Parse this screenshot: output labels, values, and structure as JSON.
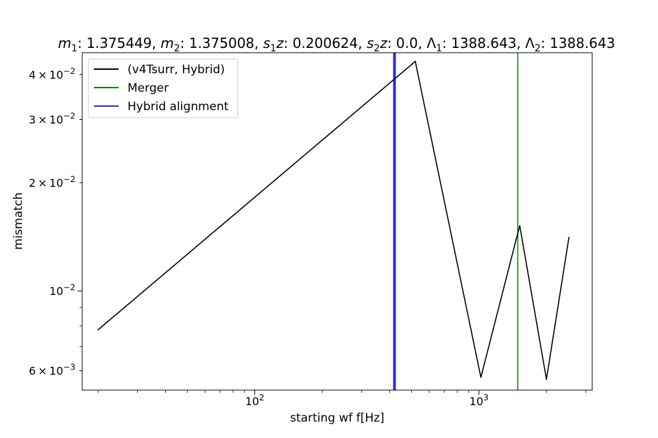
{
  "chart_data": {
    "type": "line",
    "title": {
      "m1_label": "m",
      "m1_sub": "1",
      "m1_value": ": 1.375449, ",
      "m2_label": "m",
      "m2_sub": "2",
      "m2_value": ": 1.375008, ",
      "s1_label": "s",
      "s1_sub": "1",
      "s1_suffix": "z",
      "s1_value": ": 0.200624, ",
      "s2_label": "s",
      "s2_sub": "2",
      "s2_suffix": "z",
      "s2_value": ": 0.0, ",
      "l1_label": "Λ",
      "l1_sub": "1",
      "l1_value": ": 1388.643, ",
      "l2_label": "Λ",
      "l2_sub": "2",
      "l2_value": ": 1388.643"
    },
    "xlabel": "starting wf f[Hz]",
    "ylabel": "mismatch",
    "xscale": "log",
    "yscale": "log",
    "xlim": [
      17,
      3200
    ],
    "ylim": [
      0.0053,
      0.046
    ],
    "x_ticks": [
      {
        "value": 100,
        "base": "10",
        "exp": "2"
      },
      {
        "value": 1000,
        "base": "10",
        "exp": "3"
      }
    ],
    "y_ticks": [
      {
        "value": 0.006,
        "coef": "6",
        "exp": "−3"
      },
      {
        "value": 0.01,
        "coef": "",
        "exp": "−2"
      },
      {
        "value": 0.02,
        "coef": "2",
        "exp": "−2"
      },
      {
        "value": 0.03,
        "coef": "3",
        "exp": "−2"
      },
      {
        "value": 0.04,
        "coef": "4",
        "exp": "−2"
      }
    ],
    "series": [
      {
        "name": "(v4Tsurr, Hybrid)",
        "color": "#000000",
        "x": [
          20,
          520,
          1020,
          1520,
          2000,
          2520
        ],
        "y": [
          0.0078,
          0.0435,
          0.00575,
          0.0152,
          0.00568,
          0.0141
        ]
      }
    ],
    "vlines": [
      {
        "name": "Merger",
        "x": 1490,
        "color": "#008000",
        "width": 1.5
      },
      {
        "name": "Hybrid alignment",
        "x": 420,
        "color": "#2b2bd9",
        "width": 4
      }
    ],
    "legend": {
      "position": "top-left",
      "entries": [
        {
          "label": "(v4Tsurr, Hybrid)",
          "color": "#000000"
        },
        {
          "label": "Merger",
          "color": "#008000"
        },
        {
          "label": "Hybrid alignment",
          "color": "#2b2bd9"
        }
      ]
    },
    "grid": false
  }
}
